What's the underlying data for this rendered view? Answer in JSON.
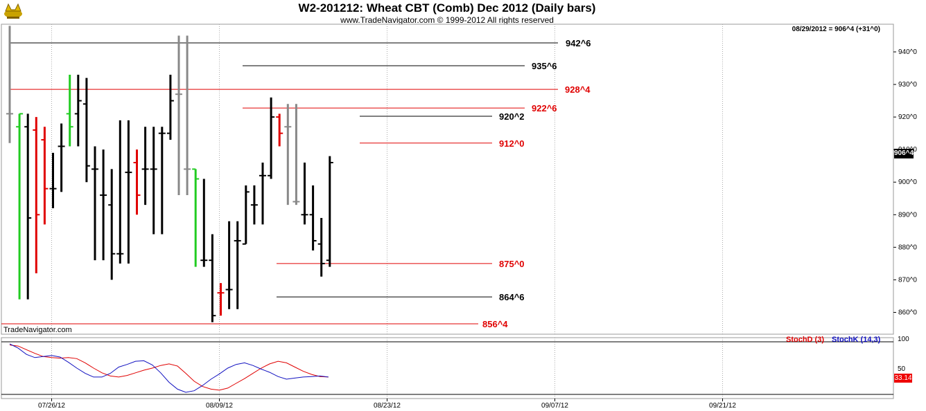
{
  "header": {
    "title": "W2-201212:  Wheat CBT (Comb) Dec 2012  (Daily bars)",
    "subtitle": "www.TradeNavigator.com © 1999-2012 All rights reserved",
    "readout": "08/29/2012 = 906^4 (+31^0)",
    "brand": "TradeNavigator.com",
    "logo": "bull-logo-icon"
  },
  "colors": {
    "up": "#000000",
    "down": "#e00000",
    "neutral": "#888888",
    "green": "#22cc22",
    "stochD": "#e00000",
    "stochK": "#1010c0"
  },
  "chart_data": [
    {
      "type": "ohlc",
      "title": "W2-201212:  Wheat CBT (Comb) Dec 2012  (Daily bars)",
      "price_axis": {
        "ticks": [
          "940^0",
          "930^0",
          "920^0",
          "910^0",
          "900^0",
          "890^0",
          "880^0",
          "870^0",
          "860^0"
        ],
        "ylim": [
          853.3,
          948.5
        ]
      },
      "x_axis": {
        "ticks": [
          "07/26/12",
          "08/09/12",
          "08/23/12",
          "09/07/12",
          "09/21/12"
        ]
      },
      "current_price_label": "906^4",
      "bars": [
        {
          "o": 921,
          "h": 948,
          "l": 912,
          "c": 921,
          "color": "neutral"
        },
        {
          "o": 917,
          "h": 921,
          "l": 864,
          "c": 921,
          "color": "green"
        },
        {
          "o": 917,
          "h": 921,
          "l": 864,
          "c": 889,
          "color": "up"
        },
        {
          "o": 916,
          "h": 920,
          "l": 872,
          "c": 890,
          "color": "down"
        },
        {
          "o": 913,
          "h": 917,
          "l": 887,
          "c": 898,
          "color": "down"
        },
        {
          "o": 898,
          "h": 909,
          "l": 892,
          "c": 898,
          "color": "up"
        },
        {
          "o": 911,
          "h": 918,
          "l": 897,
          "c": 911,
          "color": "up"
        },
        {
          "o": 921,
          "h": 933,
          "l": 911,
          "c": 917,
          "color": "green"
        },
        {
          "o": 921,
          "h": 933,
          "l": 911,
          "c": 925,
          "color": "up"
        },
        {
          "o": 924,
          "h": 932,
          "l": 900,
          "c": 905,
          "color": "up"
        },
        {
          "o": 904,
          "h": 911,
          "l": 876,
          "c": 904,
          "color": "up"
        },
        {
          "o": 896,
          "h": 910,
          "l": 876,
          "c": 896,
          "color": "up"
        },
        {
          "o": 893,
          "h": 904,
          "l": 870,
          "c": 878,
          "color": "up"
        },
        {
          "o": 878,
          "h": 919,
          "l": 875,
          "c": 878,
          "color": "up"
        },
        {
          "o": 903,
          "h": 919,
          "l": 875,
          "c": 903,
          "color": "up"
        },
        {
          "o": 906,
          "h": 910,
          "l": 890,
          "c": 896,
          "color": "down"
        },
        {
          "o": 904,
          "h": 917,
          "l": 893,
          "c": 904,
          "color": "up"
        },
        {
          "o": 904,
          "h": 917,
          "l": 884,
          "c": 904,
          "color": "up"
        },
        {
          "o": 915,
          "h": 917,
          "l": 884,
          "c": 915,
          "color": "up"
        },
        {
          "o": 915,
          "h": 933,
          "l": 913,
          "c": 925,
          "color": "up"
        },
        {
          "o": 927,
          "h": 945,
          "l": 896,
          "c": 927,
          "color": "neutral"
        },
        {
          "o": 904,
          "h": 945,
          "l": 896,
          "c": 904,
          "color": "neutral"
        },
        {
          "o": 904,
          "h": 904,
          "l": 874,
          "c": 901,
          "color": "green"
        },
        {
          "o": 876,
          "h": 901,
          "l": 874,
          "c": 876,
          "color": "up"
        },
        {
          "o": 876,
          "h": 884,
          "l": 857,
          "c": 859,
          "color": "up"
        },
        {
          "o": 866,
          "h": 869,
          "l": 859,
          "c": 866,
          "color": "down"
        },
        {
          "o": 867,
          "h": 888,
          "l": 861,
          "c": 867,
          "color": "up"
        },
        {
          "o": 882,
          "h": 888,
          "l": 861,
          "c": 882,
          "color": "up"
        },
        {
          "o": 881,
          "h": 899,
          "l": 881,
          "c": 897,
          "color": "up"
        },
        {
          "o": 893,
          "h": 899,
          "l": 887,
          "c": 893,
          "color": "up"
        },
        {
          "o": 902,
          "h": 906,
          "l": 887,
          "c": 902,
          "color": "up"
        },
        {
          "o": 902,
          "h": 926,
          "l": 901,
          "c": 920,
          "color": "up"
        },
        {
          "o": 920,
          "h": 921,
          "l": 911,
          "c": 915,
          "color": "down"
        },
        {
          "o": 917,
          "h": 924,
          "l": 893,
          "c": 917,
          "color": "neutral"
        },
        {
          "o": 894,
          "h": 924,
          "l": 893,
          "c": 894,
          "color": "neutral"
        },
        {
          "o": 890,
          "h": 906,
          "l": 887,
          "c": 890,
          "color": "up"
        },
        {
          "o": 890,
          "h": 899,
          "l": 879,
          "c": 882,
          "color": "up"
        },
        {
          "o": 881,
          "h": 889,
          "l": 871,
          "c": 875,
          "color": "up"
        },
        {
          "o": 876,
          "h": 908,
          "l": 874,
          "c": 906,
          "color": "up"
        }
      ],
      "levels": [
        {
          "label": "942^6",
          "value": 942.75,
          "color": "up"
        },
        {
          "label": "935^6",
          "value": 935.75,
          "color": "up"
        },
        {
          "label": "928^4",
          "value": 928.5,
          "color": "down"
        },
        {
          "label": "922^6",
          "value": 922.75,
          "color": "down"
        },
        {
          "label": "920^2",
          "value": 920.25,
          "color": "up"
        },
        {
          "label": "912^0",
          "value": 912.0,
          "color": "down"
        },
        {
          "label": "875^0",
          "value": 875.0,
          "color": "down"
        },
        {
          "label": "864^6",
          "value": 864.75,
          "color": "up"
        },
        {
          "label": "856^4",
          "value": 856.5,
          "color": "down"
        }
      ]
    },
    {
      "type": "line",
      "legend": [
        "StochD (3)",
        "StochK (14,3)"
      ],
      "y_axis": {
        "ticks": [
          "100",
          "50"
        ],
        "ylim": [
          0,
          100
        ]
      },
      "current_label": "33.14",
      "series": [
        {
          "name": "StochD (3)",
          "values": [
            94,
            92,
            85,
            78,
            72,
            70,
            69,
            70,
            68,
            60,
            50,
            41,
            35,
            33,
            36,
            41,
            46,
            50,
            55,
            58,
            54,
            40,
            25,
            15,
            10,
            8,
            12,
            21,
            30,
            40,
            50,
            58,
            63,
            60,
            52,
            44,
            38,
            34,
            33
          ]
        },
        {
          "name": "StochK (14,3)",
          "values": [
            96,
            88,
            76,
            70,
            72,
            74,
            71,
            61,
            50,
            40,
            33,
            33,
            40,
            52,
            57,
            63,
            64,
            56,
            41,
            23,
            10,
            4,
            7,
            17,
            29,
            39,
            50,
            57,
            60,
            55,
            48,
            42,
            34,
            29,
            31,
            33,
            34,
            35,
            33
          ]
        }
      ]
    }
  ]
}
